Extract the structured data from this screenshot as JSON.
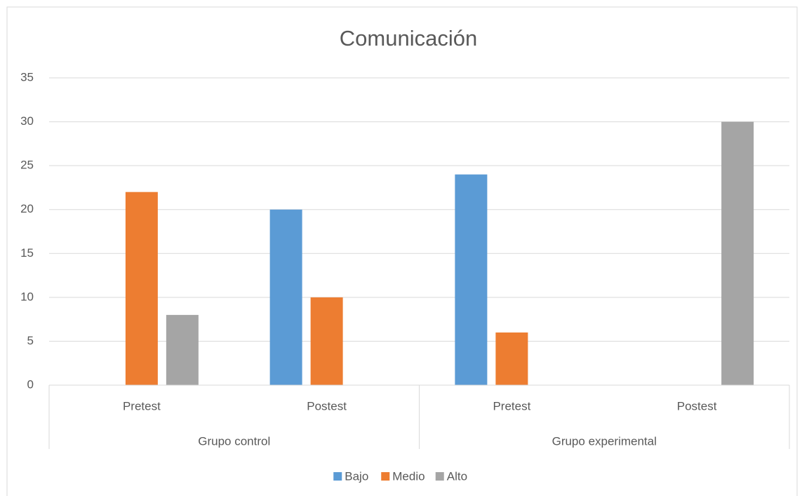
{
  "chart_data": {
    "type": "bar",
    "title": "Comunicación",
    "categories": [
      "Pretest",
      "Postest",
      "Pretest",
      "Postest"
    ],
    "groups": [
      "Grupo control",
      "Grupo experimental"
    ],
    "series": [
      {
        "name": "Bajo",
        "color": "#5b9bd5",
        "values": [
          0,
          20,
          24,
          0
        ]
      },
      {
        "name": "Medio",
        "color": "#ed7d31",
        "values": [
          22,
          10,
          6,
          0
        ]
      },
      {
        "name": "Alto",
        "color": "#a5a5a5",
        "values": [
          8,
          0,
          0,
          30
        ]
      }
    ],
    "ylim": [
      0,
      35
    ],
    "yticks": [
      0,
      5,
      10,
      15,
      20,
      25,
      30,
      35
    ],
    "grid": true,
    "legend": "bottom"
  }
}
